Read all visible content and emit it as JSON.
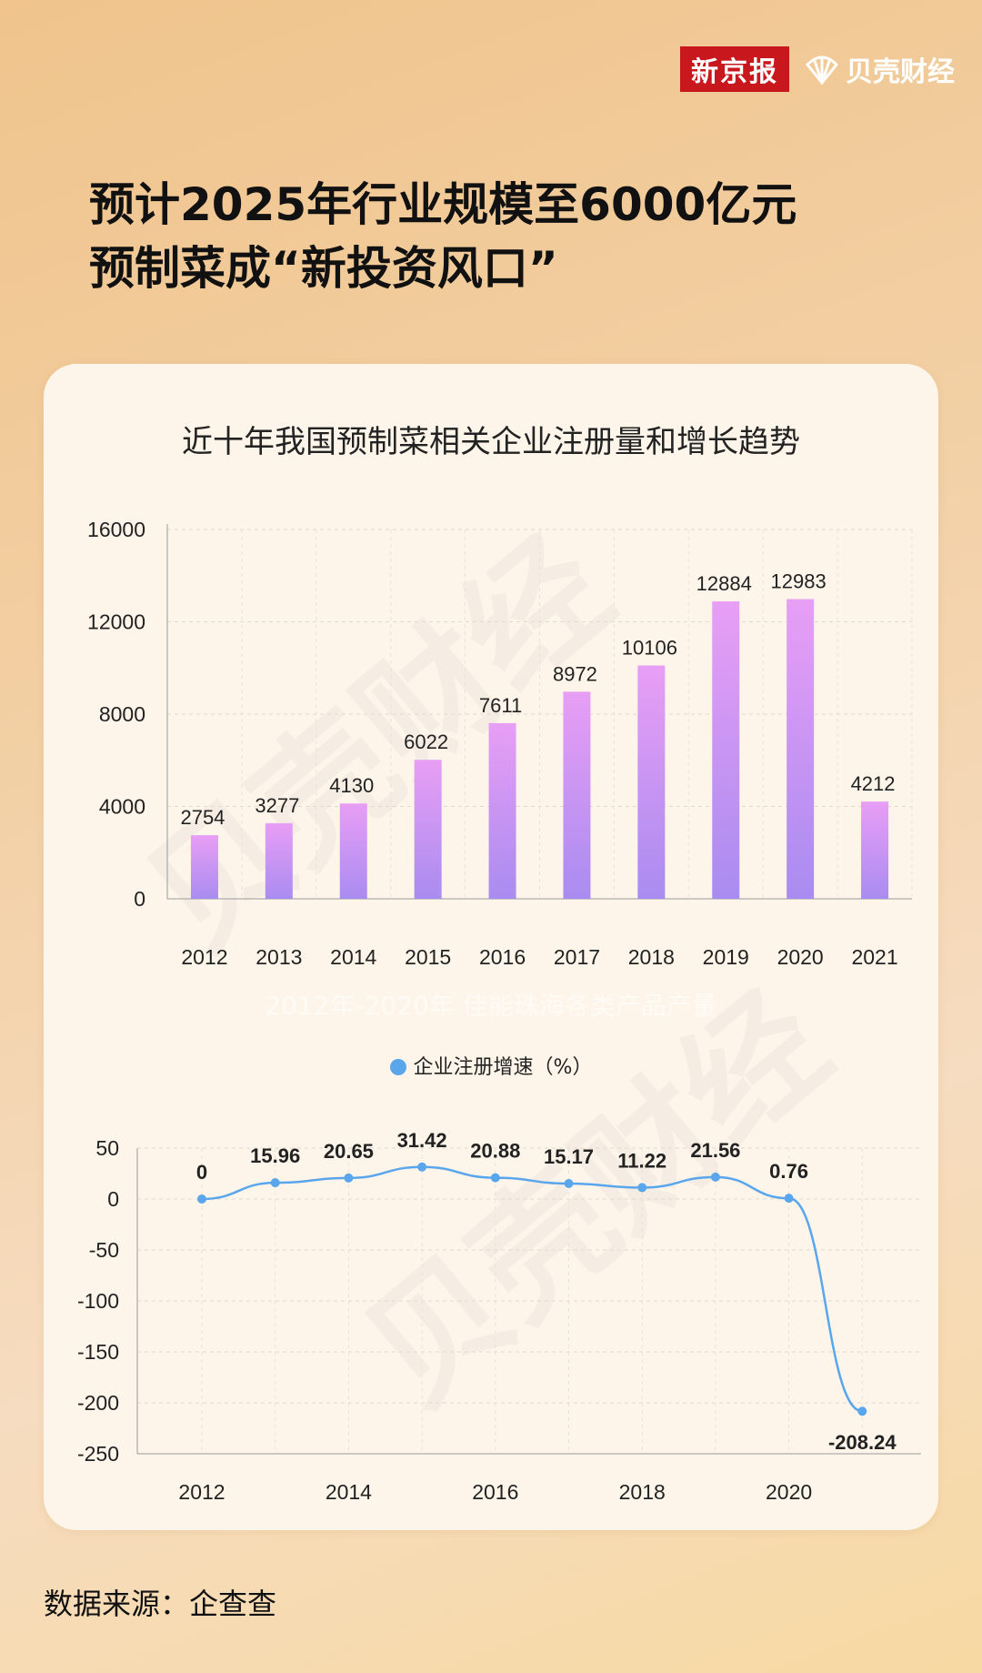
{
  "brand": {
    "xjb": "新京报",
    "beike": "贝壳财经"
  },
  "header": {
    "title_line1": "预计2025年行业规模至6000亿元",
    "title_line2": "预制菜成“新投资风口”"
  },
  "watermark_text": "贝壳财经",
  "faded_caption": "2012年-2020年 佳能珠海各类产品产量",
  "source": "数据来源：企查查",
  "colors": {
    "bar_top": "#e89ef5",
    "bar_bottom": "#a98cf0",
    "line": "#5aa6ec"
  },
  "chart_data": [
    {
      "type": "bar",
      "title": "近十年我国预制菜相关企业注册量和增长趋势",
      "categories": [
        "2012",
        "2013",
        "2014",
        "2015",
        "2016",
        "2017",
        "2018",
        "2019",
        "2020",
        "2021"
      ],
      "values": [
        2754,
        3277,
        4130,
        6022,
        7611,
        8972,
        10106,
        12884,
        12983,
        4212
      ],
      "yticks": [
        "0",
        "4000",
        "8000",
        "12000",
        "16000"
      ],
      "ylim": [
        0,
        16000
      ],
      "grid": true
    },
    {
      "type": "line",
      "series": [
        {
          "name": "企业注册增速（%）",
          "x": [
            "2012",
            "2013",
            "2014",
            "2015",
            "2016",
            "2017",
            "2018",
            "2019",
            "2020",
            "2021"
          ],
          "values": [
            0,
            15.96,
            20.65,
            31.42,
            20.88,
            15.17,
            11.22,
            21.56,
            0.76,
            -208.24
          ],
          "labels": [
            "0",
            "15.96",
            "20.65",
            "31.42",
            "20.88",
            "15.17",
            "11.22",
            "21.56",
            "0.76",
            "-208.24"
          ]
        }
      ],
      "xticks": [
        "2012",
        "2014",
        "2016",
        "2018",
        "2020"
      ],
      "yticks": [
        "50",
        "0",
        "-50",
        "-100",
        "-150",
        "-200",
        "-250"
      ],
      "ylim": [
        -250,
        50
      ],
      "legend": "top-center",
      "grid": true
    }
  ]
}
